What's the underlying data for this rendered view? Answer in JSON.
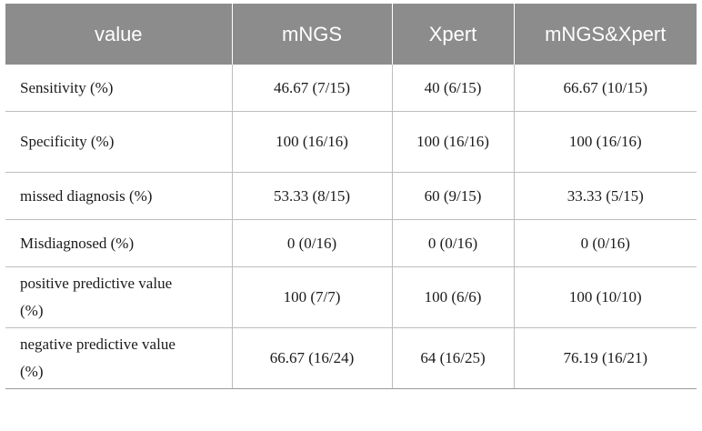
{
  "table": {
    "headers": [
      "value",
      "mNGS",
      "Xpert",
      "mNGS&Xpert"
    ],
    "rows": [
      [
        "Sensitivity (%)",
        "46.67 (7/15)",
        "40 (6/15)",
        "66.67 (10/15)"
      ],
      [
        "Specificity (%)",
        "100 (16/16)",
        "100 (16/16)",
        "100 (16/16)"
      ],
      [
        "missed diagnosis (%)",
        "53.33 (8/15)",
        "60 (9/15)",
        "33.33 (5/15)"
      ],
      [
        "Misdiagnosed (%)",
        "0 (0/16)",
        "0 (0/16)",
        "0 (0/16)"
      ],
      [
        "positive predictive value (%)",
        "100 (7/7)",
        "100 (6/6)",
        "100 (10/10)"
      ],
      [
        "negative predictive value (%)",
        "66.67 (16/24)",
        "64 (16/25)",
        "76.19 (16/21)"
      ]
    ]
  },
  "colors": {
    "header_background": "#8c8c8c",
    "header_text": "#ffffff",
    "grid_lines": "#bdbdbd"
  }
}
